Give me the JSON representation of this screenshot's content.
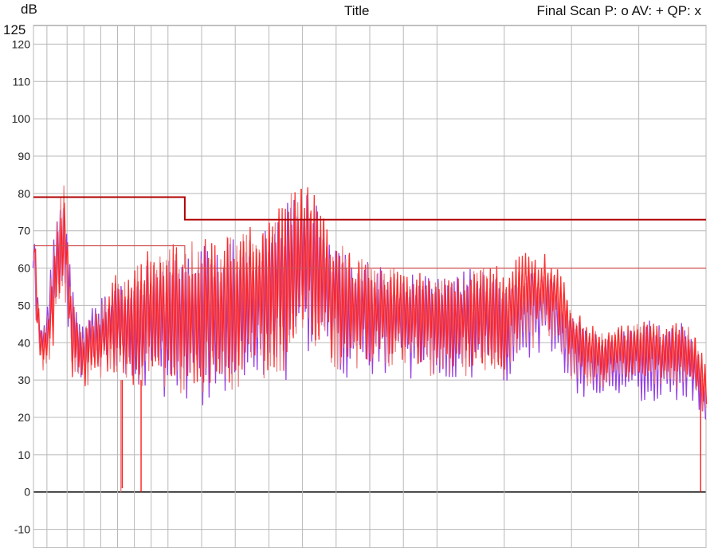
{
  "header": {
    "unit": "dB",
    "title": "Title",
    "legend": "Final Scan P: o  AV: +  QP: x",
    "top_value": "125"
  },
  "colors": {
    "background": "#ffffff",
    "grid_major": "#808080",
    "grid_minor": "#b8b8b8",
    "zero_line": "#000000",
    "trace_red": "#ff1a1a",
    "trace_salmon": "#f07a7a",
    "trace_violet": "#8a2be2",
    "limit_qp": "#b00000",
    "limit_av": "#d05050"
  },
  "chart_data": {
    "type": "line",
    "title": "Title",
    "ylabel": "dB",
    "ylim": [
      -15,
      125
    ],
    "y_ticks": [
      120,
      110,
      100,
      90,
      80,
      70,
      60,
      50,
      40,
      30,
      20,
      10,
      0,
      -10
    ],
    "y_tick_labels": [
      "120",
      "110",
      "100",
      "90",
      "80",
      "70",
      "60",
      "50",
      "40",
      "30",
      "20",
      "10",
      "0",
      "-10"
    ],
    "x_gridlines": [
      0.0,
      0.02,
      0.05,
      0.075,
      0.1,
      0.125,
      0.15,
      0.175,
      0.2,
      0.25,
      0.3,
      0.35,
      0.4,
      0.45,
      0.5,
      0.55,
      0.6,
      0.7,
      0.8,
      0.9,
      1.0
    ],
    "limit_lines": [
      {
        "name": "QP limit",
        "segments": [
          [
            0.0,
            0.225,
            79
          ],
          [
            0.225,
            1.0,
            73
          ]
        ]
      },
      {
        "name": "AV limit",
        "segments": [
          [
            0.0,
            0.225,
            66
          ],
          [
            0.225,
            1.0,
            60
          ]
        ]
      }
    ],
    "series": [
      {
        "color_key": "trace_violet",
        "x": [
          0.0,
          0.005,
          0.012,
          0.02,
          0.03,
          0.045,
          0.055,
          0.065,
          0.075,
          0.085,
          0.1,
          0.12,
          0.14,
          0.16,
          0.18,
          0.2,
          0.22,
          0.24,
          0.26,
          0.28,
          0.3,
          0.32,
          0.34,
          0.36,
          0.38,
          0.4,
          0.42,
          0.44,
          0.46,
          0.48,
          0.5,
          0.52,
          0.54,
          0.56,
          0.58,
          0.6,
          0.62,
          0.64,
          0.66,
          0.68,
          0.7,
          0.72,
          0.74,
          0.76,
          0.78,
          0.8,
          0.82,
          0.84,
          0.86,
          0.88,
          0.9,
          0.92,
          0.94,
          0.96,
          0.98,
          1.0
        ],
        "min": [
          60,
          40,
          34,
          36,
          38,
          55,
          33,
          30,
          28,
          32,
          33,
          34,
          30,
          28,
          25,
          22,
          22,
          22,
          22,
          24,
          26,
          26,
          28,
          30,
          30,
          38,
          36,
          32,
          30,
          30,
          30,
          31,
          34,
          30,
          30,
          28,
          30,
          29,
          30,
          30,
          28,
          34,
          36,
          38,
          36,
          26,
          25,
          26,
          25,
          25,
          24,
          24,
          24,
          24,
          24,
          15
        ],
        "max": [
          74,
          60,
          45,
          48,
          72,
          80,
          62,
          48,
          45,
          50,
          52,
          55,
          58,
          60,
          62,
          64,
          64,
          66,
          66,
          66,
          68,
          70,
          70,
          74,
          78,
          82,
          78,
          68,
          66,
          64,
          62,
          60,
          58,
          58,
          60,
          58,
          58,
          60,
          60,
          58,
          56,
          58,
          60,
          58,
          56,
          48,
          44,
          42,
          42,
          44,
          46,
          46,
          44,
          46,
          44,
          30
        ]
      },
      {
        "color_key": "trace_salmon",
        "x": [
          0.0,
          0.005,
          0.012,
          0.02,
          0.03,
          0.045,
          0.055,
          0.065,
          0.075,
          0.085,
          0.1,
          0.12,
          0.14,
          0.16,
          0.18,
          0.2,
          0.22,
          0.24,
          0.26,
          0.28,
          0.3,
          0.32,
          0.34,
          0.36,
          0.38,
          0.4,
          0.42,
          0.44,
          0.46,
          0.48,
          0.5,
          0.52,
          0.54,
          0.56,
          0.58,
          0.6,
          0.62,
          0.64,
          0.66,
          0.68,
          0.7,
          0.72,
          0.74,
          0.76,
          0.78,
          0.8,
          0.82,
          0.84,
          0.86,
          0.88,
          0.9,
          0.92,
          0.94,
          0.96,
          0.98,
          1.0
        ],
        "min": [
          62,
          40,
          32,
          34,
          36,
          58,
          30,
          28,
          26,
          30,
          30,
          30,
          28,
          27,
          27,
          26,
          26,
          26,
          26,
          26,
          27,
          28,
          30,
          30,
          32,
          40,
          38,
          34,
          32,
          32,
          32,
          33,
          34,
          32,
          32,
          30,
          31,
          30,
          32,
          32,
          30,
          36,
          38,
          40,
          38,
          30,
          28,
          28,
          28,
          28,
          28,
          28,
          28,
          27,
          27,
          18
        ],
        "max": [
          76,
          58,
          44,
          46,
          70,
          84,
          60,
          46,
          44,
          48,
          50,
          56,
          58,
          62,
          64,
          66,
          66,
          68,
          68,
          68,
          70,
          72,
          72,
          76,
          80,
          84,
          80,
          70,
          66,
          64,
          62,
          60,
          60,
          58,
          60,
          58,
          58,
          60,
          60,
          60,
          58,
          60,
          62,
          60,
          58,
          50,
          46,
          44,
          44,
          45,
          46,
          46,
          44,
          46,
          44,
          32
        ]
      },
      {
        "color_key": "trace_red",
        "x": [
          0.0,
          0.005,
          0.012,
          0.02,
          0.03,
          0.045,
          0.055,
          0.065,
          0.075,
          0.085,
          0.1,
          0.12,
          0.14,
          0.16,
          0.18,
          0.2,
          0.22,
          0.24,
          0.26,
          0.28,
          0.3,
          0.32,
          0.34,
          0.36,
          0.38,
          0.4,
          0.42,
          0.44,
          0.46,
          0.48,
          0.5,
          0.52,
          0.54,
          0.56,
          0.58,
          0.6,
          0.62,
          0.64,
          0.66,
          0.68,
          0.7,
          0.72,
          0.74,
          0.76,
          0.78,
          0.8,
          0.82,
          0.84,
          0.86,
          0.88,
          0.9,
          0.92,
          0.94,
          0.96,
          0.98,
          1.0
        ],
        "min": [
          64,
          42,
          33,
          35,
          37,
          60,
          31,
          29,
          27,
          31,
          32,
          31,
          29,
          28,
          28,
          27,
          27,
          27,
          27,
          27,
          28,
          29,
          31,
          31,
          33,
          42,
          40,
          36,
          34,
          34,
          34,
          34,
          36,
          34,
          34,
          32,
          32,
          32,
          34,
          34,
          32,
          40,
          42,
          44,
          42,
          34,
          30,
          30,
          30,
          30,
          30,
          30,
          30,
          29,
          29,
          20
        ],
        "max": [
          75,
          56,
          43,
          45,
          68,
          84,
          58,
          45,
          43,
          47,
          49,
          58,
          60,
          64,
          66,
          67,
          66,
          68,
          68,
          68,
          70,
          72,
          72,
          76,
          80,
          83,
          80,
          70,
          66,
          64,
          62,
          60,
          60,
          58,
          60,
          58,
          58,
          60,
          60,
          62,
          62,
          64,
          66,
          64,
          62,
          50,
          46,
          44,
          44,
          45,
          46,
          46,
          44,
          46,
          44,
          34
        ]
      }
    ],
    "notches": [
      {
        "x": 0.13,
        "to": 0,
        "color_key": "trace_salmon"
      },
      {
        "x": 0.132,
        "to": 1,
        "color_key": "trace_red"
      },
      {
        "x": 0.16,
        "to": 0,
        "color_key": "trace_red"
      },
      {
        "x": 0.992,
        "to": 0,
        "color_key": "trace_red"
      }
    ]
  }
}
